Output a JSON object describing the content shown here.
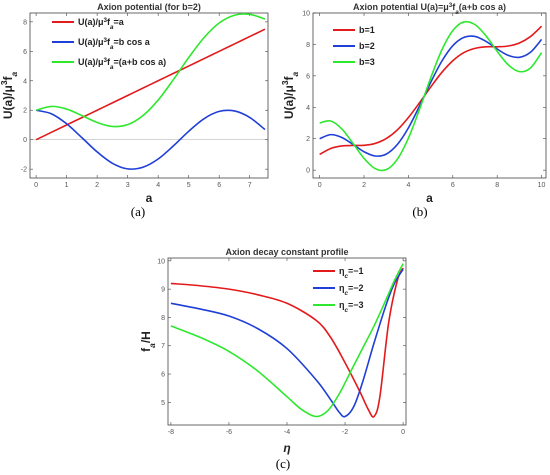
{
  "chart_data": [
    {
      "type": "line",
      "title": "Axion potential (for b=2)",
      "xlabel": "a",
      "ylabel": "U(a)/μ³f_a",
      "caption": "(a)",
      "xlim": [
        -0.2,
        7.6
      ],
      "ylim": [
        -2.6,
        8.6
      ],
      "xticks": [
        0,
        1,
        2,
        3,
        4,
        5,
        6,
        7
      ],
      "yticks": [
        -2,
        0,
        2,
        4,
        6,
        8
      ],
      "zero_line": true,
      "legend_position": "top-left",
      "series": [
        {
          "name": "U(a)/μ³f_a=a",
          "color": "#e31a1c",
          "x": [
            0,
            0.5,
            1,
            1.5,
            2,
            2.5,
            3,
            3.5,
            4,
            4.5,
            5,
            5.5,
            6,
            6.5,
            7,
            7.5
          ],
          "y": [
            0,
            0.5,
            1,
            1.5,
            2,
            2.5,
            3,
            3.5,
            4,
            4.5,
            5,
            5.5,
            6,
            6.5,
            7,
            7.5
          ]
        },
        {
          "name": "U(a)/μ³f_a=b cos a",
          "color": "#1f3fd6",
          "x": [
            0,
            0.5,
            1,
            1.5,
            2,
            2.5,
            3,
            3.5,
            4,
            4.5,
            5,
            5.5,
            6,
            6.5,
            7,
            7.5
          ],
          "y": [
            2.0,
            1.76,
            1.08,
            0.14,
            -0.83,
            -1.6,
            -1.98,
            -1.87,
            -1.31,
            -0.42,
            0.57,
            1.42,
            1.92,
            1.95,
            1.51,
            0.69
          ]
        },
        {
          "name": "U(a)/μ³f_a=(a+b cos a)",
          "color": "#2ee82e",
          "x": [
            0,
            0.5,
            1,
            1.5,
            2,
            2.5,
            3,
            3.5,
            4,
            4.5,
            5,
            5.5,
            6,
            6.5,
            7,
            7.5
          ],
          "y": [
            2.0,
            2.26,
            2.08,
            1.64,
            1.17,
            0.9,
            1.02,
            1.63,
            2.69,
            4.08,
            5.57,
            6.92,
            7.92,
            8.45,
            8.51,
            8.19
          ]
        }
      ]
    },
    {
      "type": "line",
      "title": "Axion potential U(a)=μ³f_a(a+b cos a)",
      "xlabel": "a",
      "ylabel": "U(a)/μ³f_a",
      "caption": "(b)",
      "xlim": [
        -0.3,
        10.2
      ],
      "ylim": [
        -0.5,
        10
      ],
      "xticks": [
        0,
        2,
        4,
        6,
        8,
        10
      ],
      "yticks": [
        0,
        2,
        4,
        6,
        8,
        10
      ],
      "legend_position": "top-left",
      "series": [
        {
          "name": "b=1",
          "color": "#e31a1c",
          "x": [
            0,
            0.5,
            1,
            1.5,
            2,
            2.5,
            3,
            3.5,
            4,
            4.5,
            5,
            5.5,
            6,
            6.5,
            7,
            7.5,
            8,
            8.5,
            9,
            9.5,
            10
          ],
          "y": [
            1.0,
            1.38,
            1.54,
            1.57,
            1.58,
            1.7,
            2.01,
            2.56,
            3.35,
            4.29,
            5.28,
            6.21,
            6.96,
            7.48,
            7.75,
            7.85,
            7.85,
            7.9,
            8.09,
            8.5,
            9.16
          ]
        },
        {
          "name": "b=2",
          "color": "#1f3fd6",
          "x": [
            0,
            0.5,
            1,
            1.5,
            2,
            2.5,
            3,
            3.5,
            4,
            4.5,
            5,
            5.5,
            6,
            6.5,
            7,
            7.5,
            8,
            8.5,
            9,
            9.5,
            10
          ],
          "y": [
            2.0,
            2.26,
            2.08,
            1.64,
            1.17,
            0.9,
            1.02,
            1.63,
            2.69,
            4.08,
            5.57,
            6.92,
            7.92,
            8.45,
            8.51,
            8.19,
            7.71,
            7.3,
            7.18,
            7.5,
            8.32
          ]
        },
        {
          "name": "b=3",
          "color": "#2ee82e",
          "x": [
            0,
            0.5,
            1,
            1.5,
            2,
            2.5,
            3,
            3.5,
            4,
            4.5,
            5,
            5.5,
            6,
            6.5,
            7,
            7.5,
            8,
            8.5,
            9,
            9.5,
            10
          ],
          "y": [
            3.0,
            3.13,
            2.62,
            1.71,
            0.75,
            0.1,
            0.03,
            0.69,
            2.04,
            3.87,
            5.85,
            7.63,
            8.88,
            9.43,
            9.26,
            8.54,
            7.56,
            6.7,
            6.27,
            6.5,
            7.48
          ]
        }
      ]
    },
    {
      "type": "line",
      "title": "Axion decay constant profile",
      "xlabel": "η",
      "ylabel": "f_a/H",
      "caption": "(c)",
      "xlim": [
        -8.1,
        0.1
      ],
      "ylim": [
        4.2,
        10.1
      ],
      "xticks": [
        -8,
        -6,
        -4,
        -2,
        0
      ],
      "yticks": [
        5,
        6,
        7,
        8,
        9,
        10
      ],
      "legend_position": "top-right",
      "series": [
        {
          "name": "η_c=−1",
          "color": "#e31a1c",
          "x": [
            -8,
            -7,
            -6,
            -5,
            -4,
            -3,
            -2.5,
            -2,
            -1.5,
            -1.2,
            -1.0,
            -0.8,
            -0.5,
            -0.2,
            0
          ],
          "y": [
            9.2,
            9.12,
            9.0,
            8.8,
            8.5,
            7.9,
            7.3,
            6.4,
            5.4,
            4.75,
            4.5,
            5.2,
            7.8,
            9.3,
            9.75
          ]
        },
        {
          "name": "η_c=−2",
          "color": "#1f3fd6",
          "x": [
            -8,
            -7,
            -6,
            -5,
            -4,
            -3,
            -2.5,
            -2.2,
            -2.0,
            -1.7,
            -1.4,
            -1.0,
            -0.6,
            -0.3,
            0
          ],
          "y": [
            8.5,
            8.3,
            8.05,
            7.6,
            6.9,
            5.8,
            5.1,
            4.65,
            4.5,
            4.85,
            5.7,
            7.1,
            8.4,
            9.2,
            9.7
          ]
        },
        {
          "name": "η_c=−3",
          "color": "#2ee82e",
          "x": [
            -8,
            -7,
            -6,
            -5,
            -4,
            -3.5,
            -3.0,
            -2.6,
            -2.2,
            -1.8,
            -1.4,
            -1.0,
            -0.6,
            -0.3,
            0
          ],
          "y": [
            7.7,
            7.3,
            6.8,
            6.1,
            5.2,
            4.75,
            4.5,
            4.7,
            5.3,
            6.1,
            6.9,
            7.7,
            8.6,
            9.3,
            9.9
          ]
        }
      ]
    }
  ]
}
